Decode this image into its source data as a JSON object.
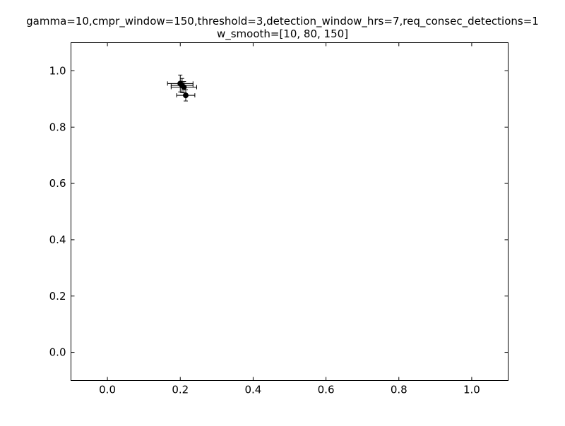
{
  "chart_data": {
    "type": "scatter",
    "title": [
      "gamma=10,cmpr_window=150,threshold=3,detection_window_hrs=7,req_consec_detections=1",
      "w_smooth=[10, 80, 150]"
    ],
    "xlabel": "",
    "ylabel": "",
    "xlim": [
      -0.1,
      1.1
    ],
    "ylim": [
      -0.1,
      1.1
    ],
    "x_ticks": [
      0.0,
      0.2,
      0.4,
      0.6,
      0.8,
      1.0
    ],
    "x_tick_labels": [
      "0.0",
      "0.2",
      "0.4",
      "0.6",
      "0.8",
      "1.0"
    ],
    "y_ticks": [
      0.0,
      0.2,
      0.4,
      0.6,
      0.8,
      1.0
    ],
    "y_tick_labels": [
      "0.0",
      "0.2",
      "0.4",
      "0.6",
      "0.8",
      "1.0"
    ],
    "grid": false,
    "marker_color": "#000000",
    "points": [
      {
        "x": 0.2,
        "y": 0.955,
        "x_err": 0.035,
        "y_err": 0.03
      },
      {
        "x": 0.21,
        "y": 0.942,
        "x_err": 0.035,
        "y_err": 0.02
      },
      {
        "x": 0.205,
        "y": 0.948,
        "x_err": 0.03,
        "y_err": 0.025
      },
      {
        "x": 0.215,
        "y": 0.913,
        "x_err": 0.025,
        "y_err": 0.02
      }
    ]
  }
}
